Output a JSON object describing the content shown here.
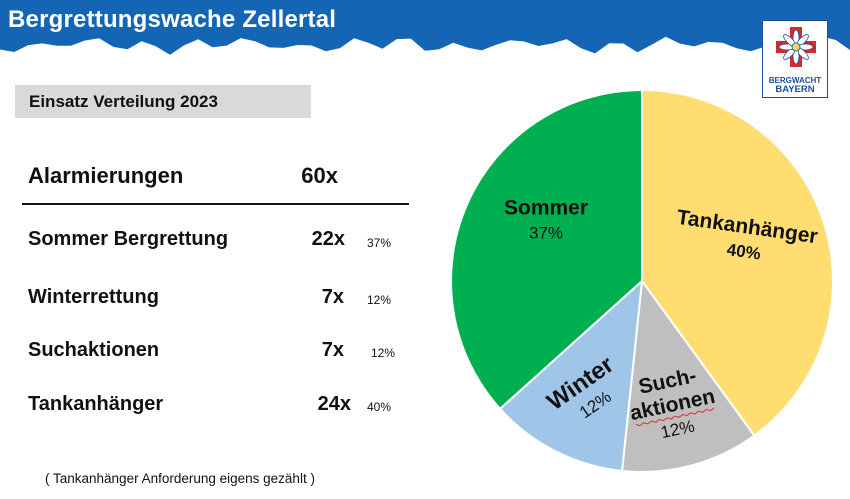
{
  "header": {
    "title": "Bergrettungswache Zellertal",
    "logo_lines": [
      "BERGWACHT",
      "BAYERN"
    ]
  },
  "subtitle": "Einsatz Verteilung 2023",
  "total": {
    "label": "Alarmierungen",
    "count": "60x"
  },
  "rows": [
    {
      "label": "Sommer Bergrettung",
      "count": "22x",
      "pct": "37%"
    },
    {
      "label": "Winterrettung",
      "count": "7x",
      "pct": "12%"
    },
    {
      "label": "Suchaktionen",
      "count": "7x",
      "pct": "12%"
    },
    {
      "label": "Tankanhänger",
      "count": "24x",
      "pct": "40%"
    }
  ],
  "footnote": "( Tankanhänger Anforderung eigens gezählt )",
  "colors": {
    "banner": "#1466b5",
    "logo_red": "#d42a2a",
    "logo_blue": "#1a4f9c"
  },
  "chart_data": {
    "type": "pie",
    "start_angle_deg": 0,
    "direction": "clockwise",
    "slices": [
      {
        "label": [
          "Tankanhänger"
        ],
        "pct_label": "40%",
        "value": 24,
        "color": "#ffdd71",
        "label_bold": true,
        "label_rot": 8
      },
      {
        "label": [
          "Such-",
          "aktionen"
        ],
        "pct_label": "12%",
        "value": 7,
        "color": "#bfbfbf",
        "label_bold": true,
        "label_rot": -12
      },
      {
        "label": [
          "Winter"
        ],
        "pct_label": "12%",
        "value": 7,
        "color": "#9fc5e8",
        "label_bold": true,
        "label_rot": -35
      },
      {
        "label": [
          "Sommer"
        ],
        "pct_label": "37%",
        "value": 22,
        "color": "#00b050",
        "label_bold": true,
        "label_rot": 0
      }
    ]
  }
}
